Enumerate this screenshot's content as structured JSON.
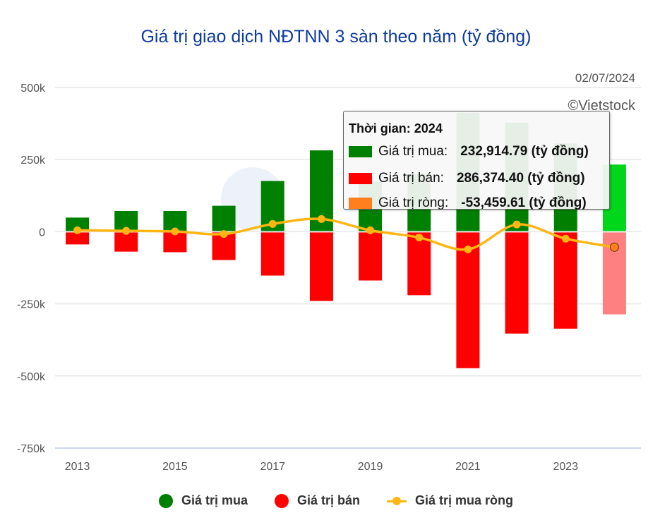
{
  "chart_data": {
    "type": "bar",
    "title": "Giá trị giao dịch NĐTNN 3 sàn theo năm (tỷ đồng)",
    "date": "02/07/2024",
    "credit": "©Vietstock",
    "categories": [
      "2013",
      "2014",
      "2015",
      "2016",
      "2017",
      "2018",
      "2019",
      "2020",
      "2021",
      "2022",
      "2023",
      "2024"
    ],
    "x_tick_labels": [
      "2013",
      "2015",
      "2017",
      "2019",
      "2021",
      "2023"
    ],
    "y_ticks": [
      500000,
      250000,
      0,
      -250000,
      -500000,
      -750000
    ],
    "y_tick_labels": [
      "500k",
      "250k",
      "0",
      "-250k",
      "-500k",
      "-750k"
    ],
    "ylim": [
      -750000,
      500000
    ],
    "grid": true,
    "legend_position": "bottom",
    "series": [
      {
        "name": "Giá trị mua",
        "type": "bar",
        "color": "#008000",
        "values": [
          49000,
          72000,
          72000,
          90000,
          176000,
          282000,
          174000,
          200000,
          412000,
          378000,
          306000,
          232914.79
        ]
      },
      {
        "name": "Giá trị bán",
        "type": "bar",
        "color": "#ff0000",
        "values": [
          -44000,
          -69000,
          -71000,
          -98000,
          -152000,
          -240000,
          -169000,
          -220000,
          -473000,
          -353000,
          -336000,
          -286374.4
        ]
      },
      {
        "name": "Giá trị mua ròng",
        "type": "line",
        "color": "#ffb612",
        "values": [
          5000,
          3000,
          1000,
          -8000,
          27000,
          44000,
          5000,
          -20000,
          -61000,
          25000,
          -24000,
          -53459.61
        ]
      }
    ],
    "highlight_index": 11
  },
  "tooltip": {
    "header": "Thời gian: 2024",
    "rows": [
      {
        "label": "Giá trị mua:",
        "value": "232,914.79 (tỷ đồng)",
        "color": "#008000"
      },
      {
        "label": "Giá trị bán:",
        "value": "286,374.40 (tỷ đồng)",
        "color": "#ff0000"
      },
      {
        "label": "Giá trị ròng:",
        "value": "-53,459.61 (tỷ đồng)",
        "color": "#ff7f1e"
      }
    ]
  },
  "legend": [
    {
      "label": "Giá trị mua",
      "color": "#008000"
    },
    {
      "label": "Giá trị bán",
      "color": "#ff0000"
    },
    {
      "label": "Giá trị mua ròng",
      "color": "#ffb612"
    }
  ]
}
